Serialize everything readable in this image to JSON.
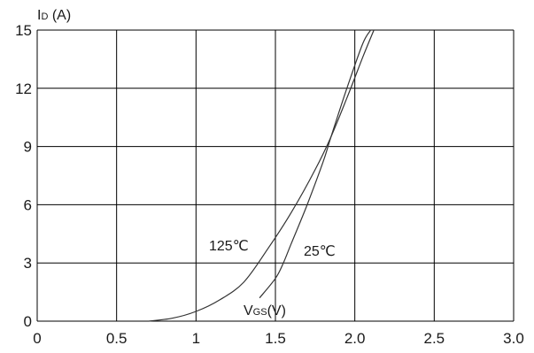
{
  "chart_data": {
    "type": "line",
    "ylabel_main": "I",
    "ylabel_sub": "D",
    "ylabel_unit": " (A)",
    "xlabel_main": "V",
    "xlabel_sub": "GS",
    "xlabel_unit": "(V)",
    "xlim": [
      0,
      3.0
    ],
    "ylim": [
      0,
      15
    ],
    "x_ticks": [
      "0",
      "0.5",
      "1",
      "1.5",
      "2.0",
      "2.5",
      "3.0"
    ],
    "x_tick_values": [
      0,
      0.5,
      1,
      1.5,
      2.0,
      2.5,
      3.0
    ],
    "y_ticks": [
      "0",
      "3",
      "6",
      "9",
      "12",
      "15"
    ],
    "y_tick_values": [
      0,
      3,
      6,
      9,
      12,
      15
    ],
    "grid": true,
    "series": [
      {
        "name": "125℃",
        "color": "#333333",
        "x": [
          0.7,
          0.85,
          1.0,
          1.15,
          1.3,
          1.45,
          1.6,
          1.75,
          1.85,
          1.95,
          2.05,
          2.12
        ],
        "y": [
          0,
          0.15,
          0.5,
          1.1,
          2.0,
          3.7,
          5.6,
          7.8,
          9.5,
          11.5,
          13.6,
          15
        ]
      },
      {
        "name": "25℃",
        "color": "#333333",
        "x": [
          1.4,
          1.5,
          1.55,
          1.6,
          1.7,
          1.8,
          1.85,
          1.95,
          2.05,
          2.1
        ],
        "y": [
          1.2,
          2.2,
          3.0,
          4.0,
          6.0,
          8.2,
          9.5,
          12.0,
          14.3,
          15
        ]
      }
    ]
  }
}
